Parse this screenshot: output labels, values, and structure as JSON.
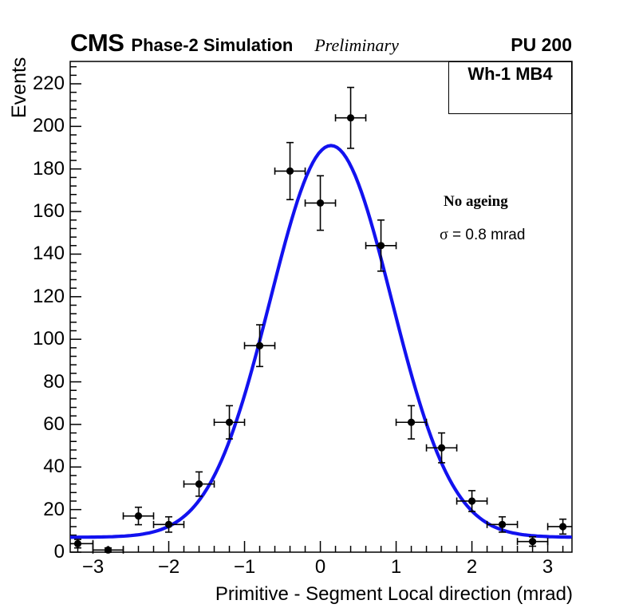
{
  "header": {
    "experiment": "CMS",
    "subtitle": "Phase-2 Simulation",
    "preliminary": "Preliminary",
    "pileup": "PU 200"
  },
  "pave_label": "Wh-1 MB4",
  "annotations": {
    "ageing": "No ageing",
    "sigma_symbol": "σ",
    "sigma_value": " = 0.8 mrad"
  },
  "chart_data": {
    "type": "scatter",
    "title": "",
    "xlabel": "Primitive - Segment Local direction (mrad)",
    "ylabel": "Events",
    "xlim": [
      -3.3,
      3.32
    ],
    "ylim": [
      0,
      230.5
    ],
    "grid": false,
    "legend": "none",
    "x_major_ticks": [
      {
        "value": -3,
        "label": "−3"
      },
      {
        "value": -2,
        "label": "−2"
      },
      {
        "value": -1,
        "label": "−1"
      },
      {
        "value": 0,
        "label": "0"
      },
      {
        "value": 1,
        "label": "1"
      },
      {
        "value": 2,
        "label": "2"
      },
      {
        "value": 3,
        "label": "3"
      }
    ],
    "x_minor_step": 0.2,
    "y_major_ticks": [
      {
        "value": 0,
        "label": "0"
      },
      {
        "value": 20,
        "label": "20"
      },
      {
        "value": 40,
        "label": "40"
      },
      {
        "value": 60,
        "label": "60"
      },
      {
        "value": 80,
        "label": "80"
      },
      {
        "value": 100,
        "label": "100"
      },
      {
        "value": 120,
        "label": "120"
      },
      {
        "value": 140,
        "label": "140"
      },
      {
        "value": 160,
        "label": "160"
      },
      {
        "value": 180,
        "label": "180"
      },
      {
        "value": 200,
        "label": "200"
      },
      {
        "value": 220,
        "label": "220"
      }
    ],
    "y_minor_step": 4,
    "x_error": 0.2,
    "points": [
      {
        "x": -3.2,
        "y": 4,
        "yerr": 2.0
      },
      {
        "x": -2.8,
        "y": 1,
        "yerr": 1.0
      },
      {
        "x": -2.4,
        "y": 17,
        "yerr": 4.1
      },
      {
        "x": -2.0,
        "y": 13,
        "yerr": 3.6
      },
      {
        "x": -1.6,
        "y": 32,
        "yerr": 5.7
      },
      {
        "x": -1.2,
        "y": 61,
        "yerr": 7.8
      },
      {
        "x": -0.8,
        "y": 97,
        "yerr": 9.8
      },
      {
        "x": -0.4,
        "y": 179,
        "yerr": 13.4
      },
      {
        "x": 0.0,
        "y": 164,
        "yerr": 12.8
      },
      {
        "x": 0.4,
        "y": 204,
        "yerr": 14.3
      },
      {
        "x": 0.8,
        "y": 144,
        "yerr": 12.0
      },
      {
        "x": 1.2,
        "y": 61,
        "yerr": 7.8
      },
      {
        "x": 1.6,
        "y": 49,
        "yerr": 7.0
      },
      {
        "x": 2.0,
        "y": 24,
        "yerr": 4.9
      },
      {
        "x": 2.4,
        "y": 13,
        "yerr": 3.6
      },
      {
        "x": 2.8,
        "y": 5,
        "yerr": 2.2
      },
      {
        "x": 3.2,
        "y": 12,
        "yerr": 3.5
      }
    ],
    "fit": {
      "model": "gaussian+constant",
      "amplitude": 184,
      "mean": 0.14,
      "sigma": 0.8,
      "baseline": 7,
      "sigma_label": "0.8 mrad",
      "color": "#1212ef",
      "line_width": 4.2
    },
    "marker": {
      "shape": "filled-circle",
      "color": "#000000",
      "radius": 4.6
    }
  }
}
